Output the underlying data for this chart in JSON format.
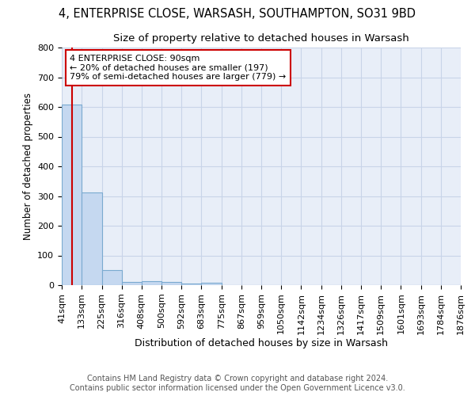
{
  "title1": "4, ENTERPRISE CLOSE, WARSASH, SOUTHAMPTON, SO31 9BD",
  "title2": "Size of property relative to detached houses in Warsash",
  "xlabel": "Distribution of detached houses by size in Warsash",
  "ylabel": "Number of detached properties",
  "bin_labels": [
    "41sqm",
    "133sqm",
    "225sqm",
    "316sqm",
    "408sqm",
    "500sqm",
    "592sqm",
    "683sqm",
    "775sqm",
    "867sqm",
    "959sqm",
    "1050sqm",
    "1142sqm",
    "1234sqm",
    "1326sqm",
    "1417sqm",
    "1509sqm",
    "1601sqm",
    "1693sqm",
    "1784sqm",
    "1876sqm"
  ],
  "bin_edges": [
    41,
    133,
    225,
    316,
    408,
    500,
    592,
    683,
    775,
    867,
    959,
    1050,
    1142,
    1234,
    1326,
    1417,
    1509,
    1601,
    1693,
    1784,
    1876
  ],
  "bar_values": [
    608,
    311,
    52,
    10,
    13,
    10,
    5,
    8,
    0,
    0,
    0,
    0,
    0,
    0,
    0,
    0,
    0,
    0,
    0,
    0
  ],
  "bar_color": "#c5d8f0",
  "bar_edge_color": "#7aaad0",
  "red_line_x": 90,
  "annotation_text": "4 ENTERPRISE CLOSE: 90sqm\n← 20% of detached houses are smaller (197)\n79% of semi-detached houses are larger (779) →",
  "annotation_box_color": "#ffffff",
  "annotation_box_edge": "#cc0000",
  "red_line_color": "#cc0000",
  "ylim": [
    0,
    800
  ],
  "yticks": [
    0,
    100,
    200,
    300,
    400,
    500,
    600,
    700,
    800
  ],
  "grid_color": "#c8d4e8",
  "bg_color": "#e8eef8",
  "footer_text": "Contains HM Land Registry data © Crown copyright and database right 2024.\nContains public sector information licensed under the Open Government Licence v3.0.",
  "title1_fontsize": 10.5,
  "title2_fontsize": 9.5,
  "xlabel_fontsize": 9,
  "ylabel_fontsize": 8.5,
  "tick_fontsize": 8,
  "footer_fontsize": 7,
  "annotation_fontsize": 8
}
